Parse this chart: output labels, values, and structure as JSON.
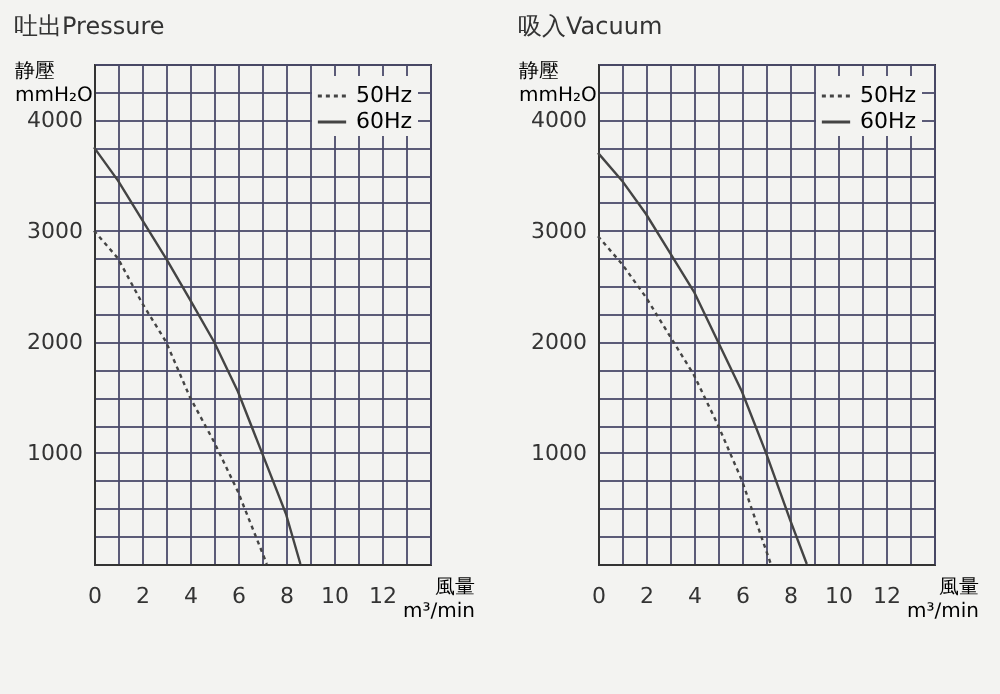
{
  "chart_data": [
    {
      "type": "line",
      "title": "吐出Pressure",
      "xlabel": "風量 m³/min",
      "ylabel": "静壓 mmH₂O",
      "xlim": [
        0,
        14
      ],
      "ylim": [
        0,
        4500
      ],
      "xticks": [
        0,
        {
          "value": 1,
          "label": null
        },
        2,
        {
          "value": 3,
          "label": null
        },
        4,
        {
          "value": 5,
          "label": null
        },
        6,
        {
          "value": 7,
          "label": null
        },
        8,
        {
          "value": 9,
          "label": null
        },
        10,
        {
          "value": 11,
          "label": null
        },
        12,
        {
          "value": 13,
          "label": null
        },
        {
          "value": 14,
          "label": null
        }
      ],
      "yticks": [
        {
          "value": 0,
          "label": null
        },
        {
          "value": 250,
          "label": null
        },
        {
          "value": 500,
          "label": null
        },
        {
          "value": 750,
          "label": null
        },
        1000,
        {
          "value": 1250,
          "label": null
        },
        {
          "value": 1500,
          "label": null
        },
        {
          "value": 1750,
          "label": null
        },
        2000,
        {
          "value": 2250,
          "label": null
        },
        {
          "value": 2500,
          "label": null
        },
        {
          "value": 2750,
          "label": null
        },
        3000,
        {
          "value": 3250,
          "label": null
        },
        {
          "value": 3500,
          "label": null
        },
        {
          "value": 3750,
          "label": null
        },
        4000,
        {
          "value": 4250,
          "label": null
        },
        {
          "value": 4500,
          "label": null
        }
      ],
      "grid": true,
      "legend": "top right",
      "series": [
        {
          "name": "50Hz",
          "color": "#444444",
          "line_style": "dotted",
          "x": [
            0,
            1,
            2,
            3,
            4,
            5,
            6,
            7.2
          ],
          "values": [
            3000,
            2750,
            2350,
            2000,
            1500,
            1100,
            650,
            0
          ]
        },
        {
          "name": "60Hz",
          "color": "#444444",
          "line_style": "solid",
          "x": [
            0,
            1,
            2,
            3,
            4,
            5,
            6,
            7,
            8,
            8.6
          ],
          "values": [
            3750,
            3450,
            3100,
            2750,
            2380,
            2000,
            1550,
            1000,
            450,
            0
          ]
        }
      ]
    },
    {
      "type": "line",
      "title": "吸入Vacuum",
      "xlabel": "風量 m³/min",
      "ylabel": "静壓 mmH₂O",
      "xlim": [
        0,
        14
      ],
      "ylim": [
        0,
        4500
      ],
      "xticks": [
        0,
        {
          "value": 1,
          "label": null
        },
        2,
        {
          "value": 3,
          "label": null
        },
        4,
        {
          "value": 5,
          "label": null
        },
        6,
        {
          "value": 7,
          "label": null
        },
        8,
        {
          "value": 9,
          "label": null
        },
        10,
        {
          "value": 11,
          "label": null
        },
        12,
        {
          "value": 13,
          "label": null
        },
        {
          "value": 14,
          "label": null
        }
      ],
      "yticks": [
        {
          "value": 0,
          "label": null
        },
        {
          "value": 250,
          "label": null
        },
        {
          "value": 500,
          "label": null
        },
        {
          "value": 750,
          "label": null
        },
        1000,
        {
          "value": 1250,
          "label": null
        },
        {
          "value": 1500,
          "label": null
        },
        {
          "value": 1750,
          "label": null
        },
        2000,
        {
          "value": 2250,
          "label": null
        },
        {
          "value": 2500,
          "label": null
        },
        {
          "value": 2750,
          "label": null
        },
        3000,
        {
          "value": 3250,
          "label": null
        },
        {
          "value": 3500,
          "label": null
        },
        {
          "value": 3750,
          "label": null
        },
        4000,
        {
          "value": 4250,
          "label": null
        },
        {
          "value": 4500,
          "label": null
        }
      ],
      "grid": true,
      "legend": "top right",
      "series": [
        {
          "name": "50Hz",
          "color": "#444444",
          "line_style": "dotted",
          "x": [
            0,
            1,
            2,
            3,
            4,
            5,
            6,
            7.2
          ],
          "values": [
            2950,
            2700,
            2400,
            2050,
            1700,
            1250,
            750,
            0
          ]
        },
        {
          "name": "60Hz",
          "color": "#444444",
          "line_style": "solid",
          "x": [
            0,
            1,
            2,
            3,
            4,
            5,
            6,
            7,
            8,
            8.7
          ],
          "values": [
            3700,
            3450,
            3150,
            2800,
            2450,
            2000,
            1550,
            1000,
            400,
            0
          ]
        }
      ]
    }
  ]
}
